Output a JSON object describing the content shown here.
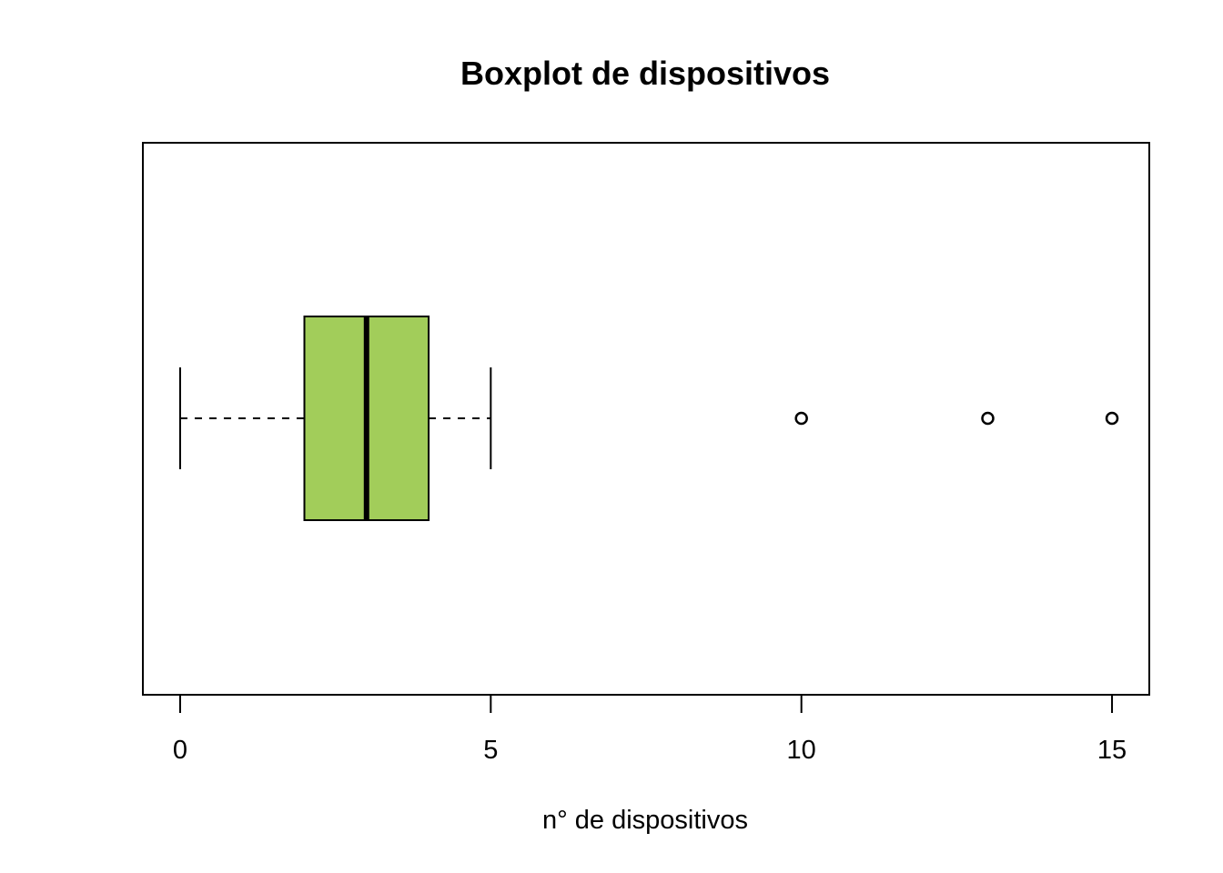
{
  "chart_data": {
    "type": "boxplot",
    "orientation": "horizontal",
    "title": "Boxplot de dispositivos",
    "xlabel": "n° de dispositivos",
    "ylabel": "",
    "xlim": [
      -0.6,
      15.6
    ],
    "x_ticks": [
      0,
      5,
      10,
      15
    ],
    "x_tick_labels": [
      "0",
      "5",
      "10",
      "15"
    ],
    "grid": false,
    "box": {
      "whisker_low": 0,
      "q1": 2,
      "median": 3,
      "q3": 4,
      "whisker_high": 5,
      "outliers": [
        10,
        13,
        15
      ],
      "fill_color": "#a2cd5a",
      "line_color": "#000000"
    }
  }
}
